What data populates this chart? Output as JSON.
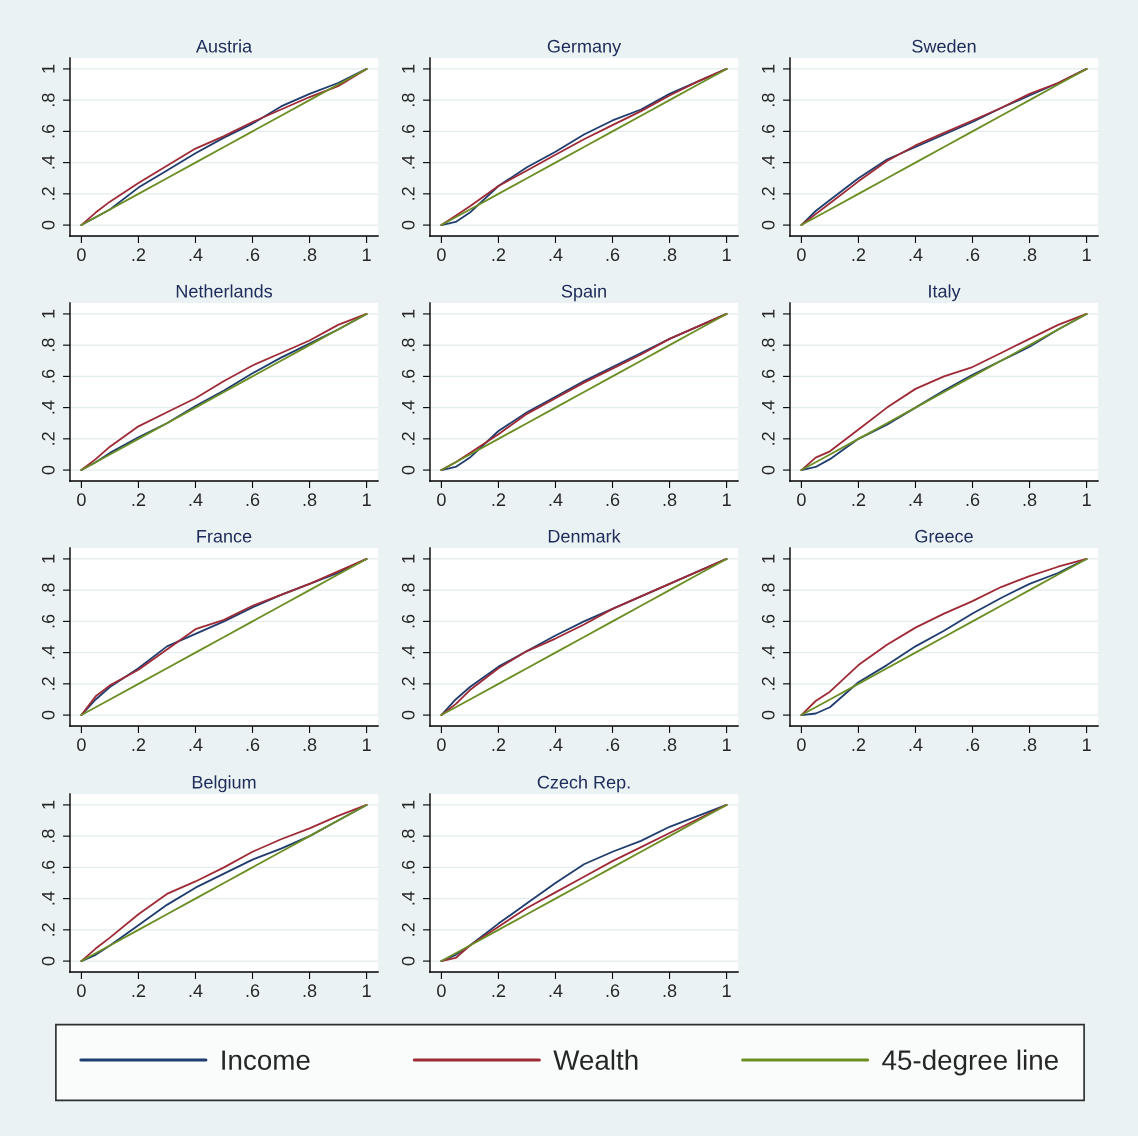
{
  "chart_data": [
    {
      "type": "line",
      "title": "Austria",
      "x": [
        0,
        0.05,
        0.1,
        0.2,
        0.3,
        0.4,
        0.5,
        0.6,
        0.7,
        0.8,
        0.9,
        1
      ],
      "series": [
        {
          "color": "#1f3d6e",
          "values": [
            0,
            0.05,
            0.1,
            0.24,
            0.35,
            0.46,
            0.56,
            0.65,
            0.76,
            0.84,
            0.91,
            1
          ]
        },
        {
          "color": "#9e2a36",
          "values": [
            0,
            0.08,
            0.15,
            0.27,
            0.38,
            0.49,
            0.57,
            0.66,
            0.74,
            0.82,
            0.89,
            1
          ]
        },
        {
          "color": "#6b8e23",
          "values": [
            0,
            0.05,
            0.1,
            0.2,
            0.3,
            0.4,
            0.5,
            0.6,
            0.7,
            0.8,
            0.9,
            1
          ]
        }
      ],
      "xlim": [
        -0.04,
        1.04
      ],
      "ylim": [
        -0.07,
        1.07
      ],
      "xticks": [
        0,
        {
          "value": 0.2,
          "label": ".2"
        },
        {
          "value": 0.4,
          "label": ".4"
        },
        {
          "value": 0.6,
          "label": ".6"
        },
        {
          "value": 0.8,
          "label": ".8"
        },
        1
      ],
      "yticks": [
        0,
        {
          "value": 0.2,
          "label": ".2"
        },
        {
          "value": 0.4,
          "label": ".4"
        },
        {
          "value": 0.6,
          "label": ".6"
        },
        {
          "value": 0.8,
          "label": ".8"
        },
        1
      ],
      "grid": "y"
    },
    {
      "type": "line",
      "title": "Germany",
      "x": [
        0,
        0.05,
        0.1,
        0.2,
        0.3,
        0.4,
        0.5,
        0.6,
        0.7,
        0.8,
        0.9,
        1
      ],
      "series": [
        {
          "color": "#1f3d6e",
          "values": [
            0,
            0.02,
            0.08,
            0.25,
            0.37,
            0.47,
            0.58,
            0.67,
            0.74,
            0.84,
            0.92,
            1
          ]
        },
        {
          "color": "#9e2a36",
          "values": [
            0,
            0.06,
            0.12,
            0.25,
            0.35,
            0.45,
            0.55,
            0.64,
            0.73,
            0.83,
            0.92,
            1
          ]
        },
        {
          "color": "#6b8e23",
          "values": [
            0,
            0.05,
            0.1,
            0.2,
            0.3,
            0.4,
            0.5,
            0.6,
            0.7,
            0.8,
            0.9,
            1
          ]
        }
      ],
      "xlim": [
        -0.04,
        1.04
      ],
      "ylim": [
        -0.07,
        1.07
      ],
      "xticks": [
        0,
        {
          "value": 0.2,
          "label": ".2"
        },
        {
          "value": 0.4,
          "label": ".4"
        },
        {
          "value": 0.6,
          "label": ".6"
        },
        {
          "value": 0.8,
          "label": ".8"
        },
        1
      ],
      "yticks": [
        0,
        {
          "value": 0.2,
          "label": ".2"
        },
        {
          "value": 0.4,
          "label": ".4"
        },
        {
          "value": 0.6,
          "label": ".6"
        },
        {
          "value": 0.8,
          "label": ".8"
        },
        1
      ],
      "grid": "y"
    },
    {
      "type": "line",
      "title": "Sweden",
      "x": [
        0,
        0.05,
        0.1,
        0.2,
        0.3,
        0.4,
        0.5,
        0.6,
        0.7,
        0.8,
        0.9,
        1
      ],
      "series": [
        {
          "color": "#1f3d6e",
          "values": [
            0,
            0.09,
            0.16,
            0.3,
            0.42,
            0.5,
            0.58,
            0.66,
            0.75,
            0.83,
            0.91,
            1
          ]
        },
        {
          "color": "#9e2a36",
          "values": [
            0,
            0.07,
            0.14,
            0.28,
            0.41,
            0.51,
            0.59,
            0.67,
            0.75,
            0.84,
            0.91,
            1
          ]
        },
        {
          "color": "#6b8e23",
          "values": [
            0,
            0.05,
            0.1,
            0.2,
            0.3,
            0.4,
            0.5,
            0.6,
            0.7,
            0.8,
            0.9,
            1
          ]
        }
      ],
      "xlim": [
        -0.04,
        1.04
      ],
      "ylim": [
        -0.07,
        1.07
      ],
      "xticks": [
        0,
        {
          "value": 0.2,
          "label": ".2"
        },
        {
          "value": 0.4,
          "label": ".4"
        },
        {
          "value": 0.6,
          "label": ".6"
        },
        {
          "value": 0.8,
          "label": ".8"
        },
        1
      ],
      "yticks": [
        0,
        {
          "value": 0.2,
          "label": ".2"
        },
        {
          "value": 0.4,
          "label": ".4"
        },
        {
          "value": 0.6,
          "label": ".6"
        },
        {
          "value": 0.8,
          "label": ".8"
        },
        1
      ],
      "grid": "y"
    },
    {
      "type": "line",
      "title": "Netherlands",
      "x": [
        0,
        0.05,
        0.1,
        0.2,
        0.3,
        0.4,
        0.5,
        0.6,
        0.7,
        0.8,
        0.9,
        1
      ],
      "series": [
        {
          "color": "#1f3d6e",
          "values": [
            0,
            0.05,
            0.11,
            0.21,
            0.3,
            0.41,
            0.51,
            0.62,
            0.72,
            0.81,
            0.9,
            1
          ]
        },
        {
          "color": "#9e2a36",
          "values": [
            0,
            0.07,
            0.15,
            0.28,
            0.37,
            0.46,
            0.57,
            0.67,
            0.75,
            0.83,
            0.93,
            1
          ]
        },
        {
          "color": "#6b8e23",
          "values": [
            0,
            0.05,
            0.1,
            0.2,
            0.3,
            0.4,
            0.5,
            0.6,
            0.7,
            0.8,
            0.9,
            1
          ]
        }
      ],
      "xlim": [
        -0.04,
        1.04
      ],
      "ylim": [
        -0.07,
        1.07
      ],
      "xticks": [
        0,
        {
          "value": 0.2,
          "label": ".2"
        },
        {
          "value": 0.4,
          "label": ".4"
        },
        {
          "value": 0.6,
          "label": ".6"
        },
        {
          "value": 0.8,
          "label": ".8"
        },
        1
      ],
      "yticks": [
        0,
        {
          "value": 0.2,
          "label": ".2"
        },
        {
          "value": 0.4,
          "label": ".4"
        },
        {
          "value": 0.6,
          "label": ".6"
        },
        {
          "value": 0.8,
          "label": ".8"
        },
        1
      ],
      "grid": "y"
    },
    {
      "type": "line",
      "title": "Spain",
      "x": [
        0,
        0.05,
        0.1,
        0.2,
        0.3,
        0.4,
        0.5,
        0.6,
        0.7,
        0.8,
        0.9,
        1
      ],
      "series": [
        {
          "color": "#1f3d6e",
          "values": [
            0,
            0.02,
            0.08,
            0.25,
            0.37,
            0.47,
            0.57,
            0.66,
            0.75,
            0.84,
            0.92,
            1
          ]
        },
        {
          "color": "#9e2a36",
          "values": [
            0,
            0.05,
            0.11,
            0.23,
            0.36,
            0.46,
            0.56,
            0.65,
            0.74,
            0.84,
            0.92,
            1
          ]
        },
        {
          "color": "#6b8e23",
          "values": [
            0,
            0.05,
            0.1,
            0.2,
            0.3,
            0.4,
            0.5,
            0.6,
            0.7,
            0.8,
            0.9,
            1
          ]
        }
      ],
      "xlim": [
        -0.04,
        1.04
      ],
      "ylim": [
        -0.07,
        1.07
      ],
      "xticks": [
        0,
        {
          "value": 0.2,
          "label": ".2"
        },
        {
          "value": 0.4,
          "label": ".4"
        },
        {
          "value": 0.6,
          "label": ".6"
        },
        {
          "value": 0.8,
          "label": ".8"
        },
        1
      ],
      "yticks": [
        0,
        {
          "value": 0.2,
          "label": ".2"
        },
        {
          "value": 0.4,
          "label": ".4"
        },
        {
          "value": 0.6,
          "label": ".6"
        },
        {
          "value": 0.8,
          "label": ".8"
        },
        1
      ],
      "grid": "y"
    },
    {
      "type": "line",
      "title": "Italy",
      "x": [
        0,
        0.05,
        0.1,
        0.2,
        0.3,
        0.4,
        0.5,
        0.6,
        0.7,
        0.8,
        0.9,
        1
      ],
      "series": [
        {
          "color": "#1f3d6e",
          "values": [
            0,
            0.02,
            0.07,
            0.2,
            0.29,
            0.4,
            0.51,
            0.61,
            0.7,
            0.79,
            0.9,
            1
          ]
        },
        {
          "color": "#9e2a36",
          "values": [
            0,
            0.08,
            0.12,
            0.26,
            0.4,
            0.52,
            0.6,
            0.66,
            0.75,
            0.84,
            0.93,
            1
          ]
        },
        {
          "color": "#6b8e23",
          "values": [
            0,
            0.05,
            0.1,
            0.2,
            0.3,
            0.4,
            0.5,
            0.6,
            0.7,
            0.8,
            0.9,
            1
          ]
        }
      ],
      "xlim": [
        -0.04,
        1.04
      ],
      "ylim": [
        -0.07,
        1.07
      ],
      "xticks": [
        0,
        {
          "value": 0.2,
          "label": ".2"
        },
        {
          "value": 0.4,
          "label": ".4"
        },
        {
          "value": 0.6,
          "label": ".6"
        },
        {
          "value": 0.8,
          "label": ".8"
        },
        1
      ],
      "yticks": [
        0,
        {
          "value": 0.2,
          "label": ".2"
        },
        {
          "value": 0.4,
          "label": ".4"
        },
        {
          "value": 0.6,
          "label": ".6"
        },
        {
          "value": 0.8,
          "label": ".8"
        },
        1
      ],
      "grid": "y"
    },
    {
      "type": "line",
      "title": "France",
      "x": [
        0,
        0.05,
        0.1,
        0.2,
        0.3,
        0.4,
        0.5,
        0.6,
        0.7,
        0.8,
        0.9,
        1
      ],
      "series": [
        {
          "color": "#1f3d6e",
          "values": [
            0,
            0.1,
            0.18,
            0.3,
            0.44,
            0.52,
            0.6,
            0.69,
            0.77,
            0.84,
            0.91,
            1
          ]
        },
        {
          "color": "#9e2a36",
          "values": [
            0,
            0.12,
            0.19,
            0.29,
            0.42,
            0.55,
            0.61,
            0.7,
            0.77,
            0.84,
            0.92,
            1
          ]
        },
        {
          "color": "#6b8e23",
          "values": [
            0,
            0.05,
            0.1,
            0.2,
            0.3,
            0.4,
            0.5,
            0.6,
            0.7,
            0.8,
            0.9,
            1
          ]
        }
      ],
      "xlim": [
        -0.04,
        1.04
      ],
      "ylim": [
        -0.07,
        1.07
      ],
      "xticks": [
        0,
        {
          "value": 0.2,
          "label": ".2"
        },
        {
          "value": 0.4,
          "label": ".4"
        },
        {
          "value": 0.6,
          "label": ".6"
        },
        {
          "value": 0.8,
          "label": ".8"
        },
        1
      ],
      "yticks": [
        0,
        {
          "value": 0.2,
          "label": ".2"
        },
        {
          "value": 0.4,
          "label": ".4"
        },
        {
          "value": 0.6,
          "label": ".6"
        },
        {
          "value": 0.8,
          "label": ".8"
        },
        1
      ],
      "grid": "y"
    },
    {
      "type": "line",
      "title": "Denmark",
      "x": [
        0,
        0.05,
        0.1,
        0.2,
        0.3,
        0.4,
        0.5,
        0.6,
        0.7,
        0.8,
        0.9,
        1
      ],
      "series": [
        {
          "color": "#1f3d6e",
          "values": [
            0,
            0.1,
            0.18,
            0.31,
            0.41,
            0.51,
            0.6,
            0.68,
            0.76,
            0.84,
            0.92,
            1
          ]
        },
        {
          "color": "#9e2a36",
          "values": [
            0,
            0.07,
            0.16,
            0.3,
            0.41,
            0.49,
            0.58,
            0.68,
            0.76,
            0.84,
            0.92,
            1
          ]
        },
        {
          "color": "#6b8e23",
          "values": [
            0,
            0.05,
            0.1,
            0.2,
            0.3,
            0.4,
            0.5,
            0.6,
            0.7,
            0.8,
            0.9,
            1
          ]
        }
      ],
      "xlim": [
        -0.04,
        1.04
      ],
      "ylim": [
        -0.07,
        1.07
      ],
      "xticks": [
        0,
        {
          "value": 0.2,
          "label": ".2"
        },
        {
          "value": 0.4,
          "label": ".4"
        },
        {
          "value": 0.6,
          "label": ".6"
        },
        {
          "value": 0.8,
          "label": ".8"
        },
        1
      ],
      "yticks": [
        0,
        {
          "value": 0.2,
          "label": ".2"
        },
        {
          "value": 0.4,
          "label": ".4"
        },
        {
          "value": 0.6,
          "label": ".6"
        },
        {
          "value": 0.8,
          "label": ".8"
        },
        1
      ],
      "grid": "y"
    },
    {
      "type": "line",
      "title": "Greece",
      "x": [
        0,
        0.05,
        0.1,
        0.2,
        0.3,
        0.4,
        0.5,
        0.6,
        0.7,
        0.8,
        0.9,
        1
      ],
      "series": [
        {
          "color": "#1f3d6e",
          "values": [
            0,
            0.01,
            0.05,
            0.21,
            0.32,
            0.44,
            0.54,
            0.65,
            0.75,
            0.84,
            0.91,
            1
          ]
        },
        {
          "color": "#9e2a36",
          "values": [
            0,
            0.09,
            0.15,
            0.32,
            0.45,
            0.56,
            0.65,
            0.73,
            0.82,
            0.89,
            0.95,
            1
          ]
        },
        {
          "color": "#6b8e23",
          "values": [
            0,
            0.05,
            0.1,
            0.2,
            0.3,
            0.4,
            0.5,
            0.6,
            0.7,
            0.8,
            0.9,
            1
          ]
        }
      ],
      "xlim": [
        -0.04,
        1.04
      ],
      "ylim": [
        -0.07,
        1.07
      ],
      "xticks": [
        0,
        {
          "value": 0.2,
          "label": ".2"
        },
        {
          "value": 0.4,
          "label": ".4"
        },
        {
          "value": 0.6,
          "label": ".6"
        },
        {
          "value": 0.8,
          "label": ".8"
        },
        1
      ],
      "yticks": [
        0,
        {
          "value": 0.2,
          "label": ".2"
        },
        {
          "value": 0.4,
          "label": ".4"
        },
        {
          "value": 0.6,
          "label": ".6"
        },
        {
          "value": 0.8,
          "label": ".8"
        },
        1
      ],
      "grid": "y"
    },
    {
      "type": "line",
      "title": "Belgium",
      "x": [
        0,
        0.05,
        0.1,
        0.2,
        0.3,
        0.4,
        0.5,
        0.6,
        0.7,
        0.8,
        0.9,
        1
      ],
      "series": [
        {
          "color": "#1f3d6e",
          "values": [
            0,
            0.04,
            0.1,
            0.23,
            0.36,
            0.47,
            0.56,
            0.65,
            0.72,
            0.8,
            0.9,
            1
          ]
        },
        {
          "color": "#9e2a36",
          "values": [
            0,
            0.08,
            0.15,
            0.3,
            0.43,
            0.51,
            0.6,
            0.7,
            0.78,
            0.85,
            0.93,
            1
          ]
        },
        {
          "color": "#6b8e23",
          "values": [
            0,
            0.05,
            0.1,
            0.2,
            0.3,
            0.4,
            0.5,
            0.6,
            0.7,
            0.8,
            0.9,
            1
          ]
        }
      ],
      "xlim": [
        -0.04,
        1.04
      ],
      "ylim": [
        -0.07,
        1.07
      ],
      "xticks": [
        0,
        {
          "value": 0.2,
          "label": ".2"
        },
        {
          "value": 0.4,
          "label": ".4"
        },
        {
          "value": 0.6,
          "label": ".6"
        },
        {
          "value": 0.8,
          "label": ".8"
        },
        1
      ],
      "yticks": [
        0,
        {
          "value": 0.2,
          "label": ".2"
        },
        {
          "value": 0.4,
          "label": ".4"
        },
        {
          "value": 0.6,
          "label": ".6"
        },
        {
          "value": 0.8,
          "label": ".8"
        },
        1
      ],
      "grid": "y"
    },
    {
      "type": "line",
      "title": "Czech Rep.",
      "x": [
        0,
        0.05,
        0.1,
        0.2,
        0.3,
        0.4,
        0.5,
        0.6,
        0.7,
        0.8,
        0.9,
        1
      ],
      "series": [
        {
          "name": "Income",
          "color": "#1f3d6e",
          "values": [
            0,
            0.04,
            0.1,
            0.24,
            0.37,
            0.5,
            0.62,
            0.7,
            0.77,
            0.86,
            0.93,
            1
          ]
        },
        {
          "name": "Wealth",
          "color": "#9e2a36",
          "values": [
            0,
            0.02,
            0.1,
            0.22,
            0.34,
            0.44,
            0.54,
            0.64,
            0.73,
            0.82,
            0.91,
            1
          ]
        },
        {
          "name": "45-degree line",
          "color": "#6b8e23",
          "values": [
            0,
            0.05,
            0.1,
            0.2,
            0.3,
            0.4,
            0.5,
            0.6,
            0.7,
            0.8,
            0.9,
            1
          ]
        }
      ],
      "xlim": [
        -0.04,
        1.04
      ],
      "ylim": [
        -0.07,
        1.07
      ],
      "xticks": [
        0,
        {
          "value": 0.2,
          "label": ".2"
        },
        {
          "value": 0.4,
          "label": ".4"
        },
        {
          "value": 0.6,
          "label": ".6"
        },
        {
          "value": 0.8,
          "label": ".8"
        },
        1
      ],
      "yticks": [
        0,
        {
          "value": 0.2,
          "label": ".2"
        },
        {
          "value": 0.4,
          "label": ".4"
        },
        {
          "value": 0.6,
          "label": ".6"
        },
        {
          "value": 0.8,
          "label": ".8"
        },
        1
      ],
      "grid": "y",
      "legend": "bottom"
    }
  ]
}
